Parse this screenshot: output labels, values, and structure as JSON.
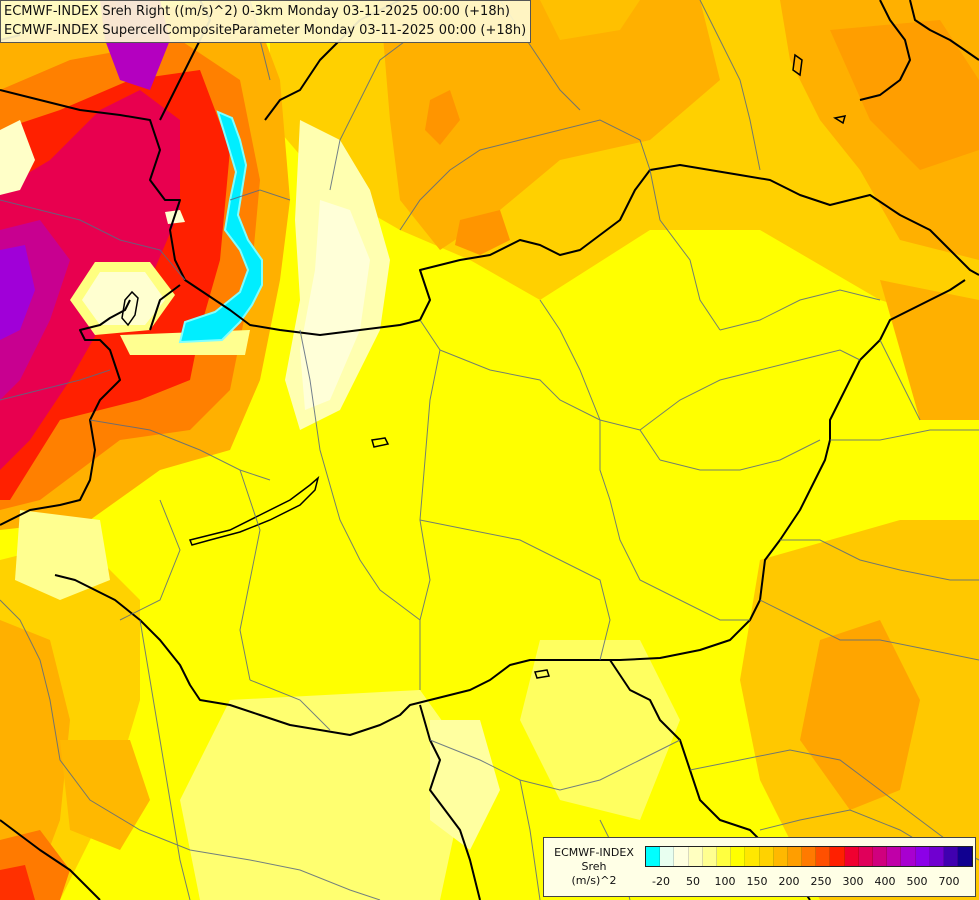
{
  "header": {
    "line1": "ECMWF-INDEX Sreh Right ((m/s)^2) 0-3km Monday 03-11-2025 00:00 (+18h)",
    "line2": "ECMWF-INDEX SupercellCompositeParameter Monday 03-11-2025 00:00 (+18h)"
  },
  "legend": {
    "line1": "ECMWF-INDEX",
    "line2": "Sreh",
    "line3": "(m/s)^2",
    "colors": [
      "#00ffff",
      "#e8fff0",
      "#ffffe0",
      "#ffffc0",
      "#ffff90",
      "#ffff40",
      "#ffff00",
      "#ffe800",
      "#ffd200",
      "#ffb800",
      "#ff9e00",
      "#ff7a00",
      "#ff5000",
      "#ff2000",
      "#f00030",
      "#e0005a",
      "#d0007e",
      "#c000a8",
      "#a800d0",
      "#8c00e8",
      "#7000d0",
      "#4000b0",
      "#100090"
    ],
    "ticks": [
      "-20",
      "50",
      "100",
      "150",
      "200",
      "250",
      "300",
      "400",
      "500",
      "700"
    ]
  },
  "palette": {
    "background": "#ffff00",
    "light": "#ffffb8",
    "orange": "#ffb000",
    "deep_orange": "#ff7a00",
    "red": "#ff1a1a",
    "magenta": "#e0004f",
    "purple": "#a000d8",
    "cyan": "#00eeff",
    "borders": "#000000",
    "regions": "#5a6a80"
  }
}
